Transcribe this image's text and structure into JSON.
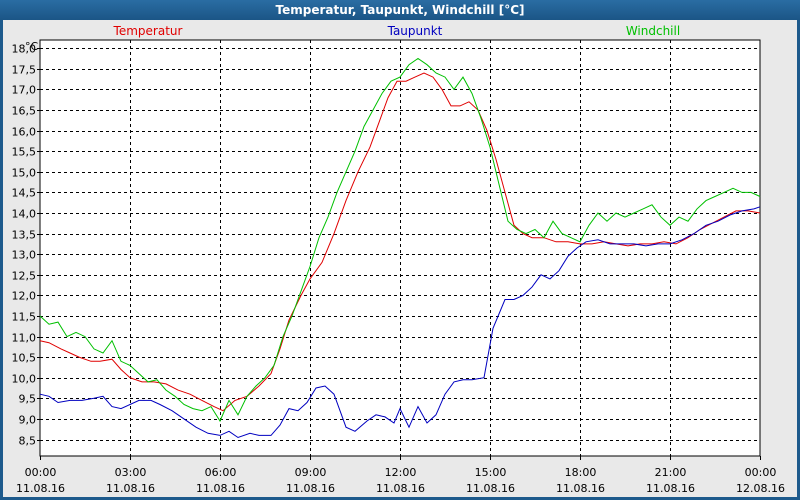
{
  "window": {
    "title": "Temperatur, Taupunkt, Windchill [°C]"
  },
  "chart_data": {
    "type": "line",
    "y_unit": "°C",
    "ylim": [
      8.1,
      18.2
    ],
    "y_ticks": [
      "8,5",
      "9,0",
      "9,5",
      "10,0",
      "10,5",
      "11,0",
      "11,5",
      "12,0",
      "12,5",
      "13,0",
      "13,5",
      "14,0",
      "14,5",
      "15,0",
      "15,5",
      "16,0",
      "16,5",
      "17,0",
      "17,5",
      "18,0"
    ],
    "y_tick_values": [
      8.5,
      9.0,
      9.5,
      10.0,
      10.5,
      11.0,
      11.5,
      12.0,
      12.5,
      13.0,
      13.5,
      14.0,
      14.5,
      15.0,
      15.5,
      16.0,
      16.5,
      17.0,
      17.5,
      18.0
    ],
    "x_range_hours": [
      0,
      24
    ],
    "x_ticks": [
      {
        "hour": 0,
        "time": "00:00",
        "date": "11.08.16"
      },
      {
        "hour": 3,
        "time": "03:00",
        "date": "11.08.16"
      },
      {
        "hour": 6,
        "time": "06:00",
        "date": "11.08.16"
      },
      {
        "hour": 9,
        "time": "09:00",
        "date": "11.08.16"
      },
      {
        "hour": 12,
        "time": "12:00",
        "date": "11.08.16"
      },
      {
        "hour": 15,
        "time": "15:00",
        "date": "11.08.16"
      },
      {
        "hour": 18,
        "time": "18:00",
        "date": "11.08.16"
      },
      {
        "hour": 21,
        "time": "21:00",
        "date": "11.08.16"
      },
      {
        "hour": 24,
        "time": "00:00",
        "date": "12.08.16"
      }
    ],
    "grid": true,
    "legend_placement": "top",
    "series": [
      {
        "name": "Temperatur",
        "color": "#e00000",
        "points": [
          [
            0,
            10.9
          ],
          [
            0.3,
            10.85
          ],
          [
            0.7,
            10.7
          ],
          [
            1.0,
            10.6
          ],
          [
            1.3,
            10.5
          ],
          [
            1.7,
            10.4
          ],
          [
            2.0,
            10.4
          ],
          [
            2.4,
            10.45
          ],
          [
            2.7,
            10.2
          ],
          [
            3.0,
            10.0
          ],
          [
            3.4,
            9.9
          ],
          [
            3.8,
            9.9
          ],
          [
            4.2,
            9.85
          ],
          [
            4.6,
            9.7
          ],
          [
            5.0,
            9.6
          ],
          [
            5.4,
            9.45
          ],
          [
            5.8,
            9.3
          ],
          [
            6.1,
            9.2
          ],
          [
            6.5,
            9.45
          ],
          [
            6.9,
            9.55
          ],
          [
            7.3,
            9.8
          ],
          [
            7.7,
            10.1
          ],
          [
            8.0,
            10.7
          ],
          [
            8.3,
            11.4
          ],
          [
            8.7,
            12.0
          ],
          [
            9.0,
            12.4
          ],
          [
            9.4,
            12.8
          ],
          [
            9.8,
            13.5
          ],
          [
            10.2,
            14.3
          ],
          [
            10.6,
            15.0
          ],
          [
            11.0,
            15.6
          ],
          [
            11.3,
            16.2
          ],
          [
            11.6,
            16.8
          ],
          [
            11.9,
            17.2
          ],
          [
            12.2,
            17.2
          ],
          [
            12.5,
            17.3
          ],
          [
            12.8,
            17.4
          ],
          [
            13.1,
            17.3
          ],
          [
            13.4,
            17.0
          ],
          [
            13.7,
            16.6
          ],
          [
            14.0,
            16.6
          ],
          [
            14.3,
            16.7
          ],
          [
            14.6,
            16.5
          ],
          [
            14.9,
            16.0
          ],
          [
            15.2,
            15.3
          ],
          [
            15.5,
            14.5
          ],
          [
            15.8,
            13.7
          ],
          [
            16.1,
            13.5
          ],
          [
            16.4,
            13.4
          ],
          [
            16.8,
            13.4
          ],
          [
            17.2,
            13.3
          ],
          [
            17.6,
            13.3
          ],
          [
            18.0,
            13.25
          ],
          [
            18.4,
            13.25
          ],
          [
            18.8,
            13.3
          ],
          [
            19.2,
            13.25
          ],
          [
            19.6,
            13.2
          ],
          [
            20.0,
            13.25
          ],
          [
            20.4,
            13.25
          ],
          [
            20.8,
            13.3
          ],
          [
            21.2,
            13.25
          ],
          [
            21.6,
            13.4
          ],
          [
            22.0,
            13.6
          ],
          [
            22.4,
            13.75
          ],
          [
            22.8,
            13.9
          ],
          [
            23.2,
            14.05
          ],
          [
            23.6,
            14.05
          ],
          [
            24.0,
            14.0
          ]
        ]
      },
      {
        "name": "Taupunkt",
        "color": "#0000c0",
        "points": [
          [
            0,
            9.6
          ],
          [
            0.3,
            9.55
          ],
          [
            0.6,
            9.4
          ],
          [
            1.0,
            9.45
          ],
          [
            1.4,
            9.45
          ],
          [
            1.8,
            9.5
          ],
          [
            2.1,
            9.55
          ],
          [
            2.4,
            9.3
          ],
          [
            2.7,
            9.25
          ],
          [
            3.0,
            9.35
          ],
          [
            3.3,
            9.45
          ],
          [
            3.7,
            9.45
          ],
          [
            4.0,
            9.35
          ],
          [
            4.4,
            9.2
          ],
          [
            4.8,
            9.0
          ],
          [
            5.2,
            8.8
          ],
          [
            5.6,
            8.65
          ],
          [
            6.0,
            8.6
          ],
          [
            6.3,
            8.7
          ],
          [
            6.6,
            8.55
          ],
          [
            7.0,
            8.65
          ],
          [
            7.3,
            8.6
          ],
          [
            7.7,
            8.6
          ],
          [
            8.0,
            8.85
          ],
          [
            8.3,
            9.25
          ],
          [
            8.6,
            9.2
          ],
          [
            8.9,
            9.4
          ],
          [
            9.2,
            9.75
          ],
          [
            9.5,
            9.8
          ],
          [
            9.8,
            9.6
          ],
          [
            10.0,
            9.2
          ],
          [
            10.2,
            8.8
          ],
          [
            10.5,
            8.7
          ],
          [
            10.9,
            8.95
          ],
          [
            11.2,
            9.1
          ],
          [
            11.5,
            9.05
          ],
          [
            11.8,
            8.9
          ],
          [
            12.0,
            9.25
          ],
          [
            12.3,
            8.8
          ],
          [
            12.6,
            9.3
          ],
          [
            12.9,
            8.9
          ],
          [
            13.2,
            9.1
          ],
          [
            13.5,
            9.6
          ],
          [
            13.8,
            9.9
          ],
          [
            14.1,
            9.95
          ],
          [
            14.4,
            9.95
          ],
          [
            14.8,
            10.0
          ],
          [
            15.1,
            11.2
          ],
          [
            15.5,
            11.9
          ],
          [
            15.8,
            11.9
          ],
          [
            16.1,
            12.0
          ],
          [
            16.4,
            12.2
          ],
          [
            16.7,
            12.5
          ],
          [
            17.0,
            12.4
          ],
          [
            17.3,
            12.6
          ],
          [
            17.6,
            12.95
          ],
          [
            17.9,
            13.15
          ],
          [
            18.2,
            13.3
          ],
          [
            18.6,
            13.35
          ],
          [
            19.0,
            13.25
          ],
          [
            19.4,
            13.25
          ],
          [
            19.8,
            13.25
          ],
          [
            20.2,
            13.2
          ],
          [
            20.6,
            13.25
          ],
          [
            21.0,
            13.25
          ],
          [
            21.4,
            13.35
          ],
          [
            21.8,
            13.5
          ],
          [
            22.2,
            13.7
          ],
          [
            22.6,
            13.8
          ],
          [
            23.0,
            13.95
          ],
          [
            23.4,
            14.05
          ],
          [
            23.8,
            14.1
          ],
          [
            24.0,
            14.15
          ]
        ]
      },
      {
        "name": "Windchill",
        "color": "#00c000",
        "points": [
          [
            0,
            11.5
          ],
          [
            0.3,
            11.3
          ],
          [
            0.6,
            11.35
          ],
          [
            0.9,
            11.0
          ],
          [
            1.2,
            11.1
          ],
          [
            1.5,
            11.0
          ],
          [
            1.8,
            10.7
          ],
          [
            2.1,
            10.6
          ],
          [
            2.4,
            10.9
          ],
          [
            2.7,
            10.4
          ],
          [
            3.0,
            10.3
          ],
          [
            3.3,
            10.1
          ],
          [
            3.6,
            9.9
          ],
          [
            3.9,
            9.95
          ],
          [
            4.2,
            9.7
          ],
          [
            4.5,
            9.55
          ],
          [
            4.8,
            9.35
          ],
          [
            5.1,
            9.25
          ],
          [
            5.4,
            9.2
          ],
          [
            5.7,
            9.3
          ],
          [
            6.0,
            8.95
          ],
          [
            6.3,
            9.45
          ],
          [
            6.6,
            9.1
          ],
          [
            6.9,
            9.55
          ],
          [
            7.2,
            9.8
          ],
          [
            7.5,
            10.0
          ],
          [
            7.8,
            10.3
          ],
          [
            8.1,
            11.0
          ],
          [
            8.4,
            11.5
          ],
          [
            8.7,
            12.1
          ],
          [
            9.0,
            12.7
          ],
          [
            9.3,
            13.4
          ],
          [
            9.6,
            13.9
          ],
          [
            9.9,
            14.5
          ],
          [
            10.2,
            15.0
          ],
          [
            10.5,
            15.5
          ],
          [
            10.8,
            16.1
          ],
          [
            11.1,
            16.5
          ],
          [
            11.4,
            16.9
          ],
          [
            11.7,
            17.2
          ],
          [
            12.0,
            17.3
          ],
          [
            12.3,
            17.6
          ],
          [
            12.6,
            17.75
          ],
          [
            12.9,
            17.6
          ],
          [
            13.2,
            17.4
          ],
          [
            13.5,
            17.3
          ],
          [
            13.8,
            17.0
          ],
          [
            14.1,
            17.3
          ],
          [
            14.4,
            16.9
          ],
          [
            14.7,
            16.3
          ],
          [
            15.0,
            15.6
          ],
          [
            15.3,
            14.7
          ],
          [
            15.6,
            13.8
          ],
          [
            15.9,
            13.6
          ],
          [
            16.2,
            13.5
          ],
          [
            16.5,
            13.6
          ],
          [
            16.8,
            13.4
          ],
          [
            17.1,
            13.8
          ],
          [
            17.4,
            13.5
          ],
          [
            17.7,
            13.4
          ],
          [
            18.0,
            13.3
          ],
          [
            18.3,
            13.7
          ],
          [
            18.6,
            14.0
          ],
          [
            18.9,
            13.8
          ],
          [
            19.2,
            14.0
          ],
          [
            19.5,
            13.9
          ],
          [
            19.8,
            14.0
          ],
          [
            20.1,
            14.1
          ],
          [
            20.4,
            14.2
          ],
          [
            20.7,
            13.9
          ],
          [
            21.0,
            13.7
          ],
          [
            21.3,
            13.9
          ],
          [
            21.6,
            13.8
          ],
          [
            21.9,
            14.1
          ],
          [
            22.2,
            14.3
          ],
          [
            22.5,
            14.4
          ],
          [
            22.8,
            14.5
          ],
          [
            23.1,
            14.6
          ],
          [
            23.4,
            14.5
          ],
          [
            23.7,
            14.5
          ],
          [
            24.0,
            14.4
          ]
        ]
      }
    ]
  }
}
